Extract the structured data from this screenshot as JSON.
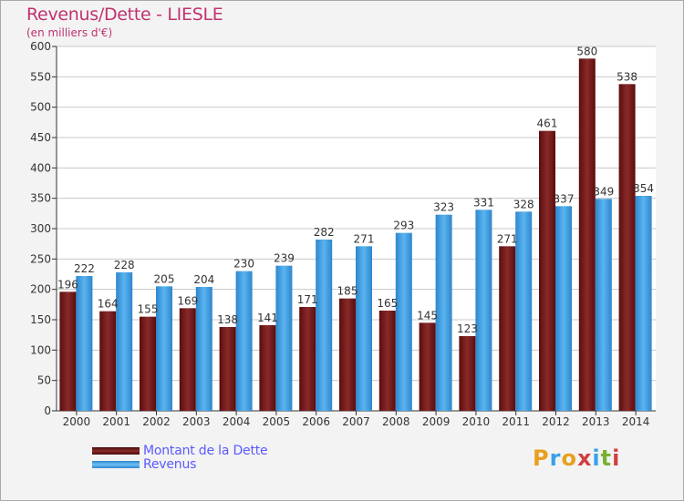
{
  "header": {
    "title": "Revenus/Dette - LIESLE",
    "subtitle": "(en milliers d'€)"
  },
  "chart_data": {
    "type": "bar",
    "title": "Revenus/Dette - LIESLE",
    "ylabel": "(en milliers d'€)",
    "xlabel": "",
    "categories": [
      "2000",
      "2001",
      "2002",
      "2003",
      "2004",
      "2005",
      "2006",
      "2007",
      "2008",
      "2009",
      "2010",
      "2011",
      "2012",
      "2013",
      "2014"
    ],
    "series": [
      {
        "name": "Montant de la Dette",
        "color": "#7a1e1e",
        "values": [
          196,
          164,
          155,
          169,
          138,
          141,
          171,
          185,
          165,
          145,
          123,
          271,
          461,
          580,
          538
        ]
      },
      {
        "name": "Revenus",
        "color": "#3aa0e8",
        "values": [
          222,
          228,
          205,
          204,
          230,
          239,
          282,
          271,
          293,
          323,
          331,
          328,
          337,
          349,
          354
        ]
      }
    ],
    "ylim": [
      0,
      600
    ],
    "yticks": [
      0,
      50,
      100,
      150,
      200,
      250,
      300,
      350,
      400,
      450,
      500,
      550,
      600
    ],
    "grid": true,
    "legend_position": "bottom-left"
  },
  "legend": {
    "items": [
      {
        "label": "Montant de la Dette",
        "color": "#7a1e1e"
      },
      {
        "label": "Revenus",
        "color": "#3aa0e8"
      }
    ]
  },
  "logo": {
    "text": "Proxiti"
  }
}
